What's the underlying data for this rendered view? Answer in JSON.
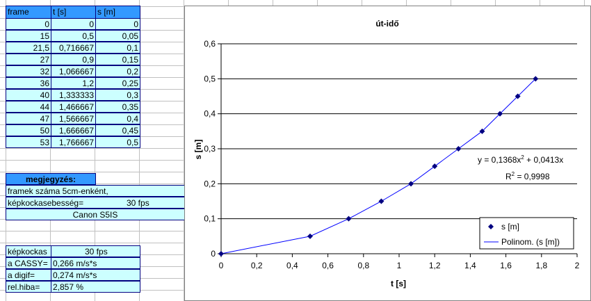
{
  "spreadsheet": {
    "headers": [
      "frame",
      "t [s]",
      "s [m]"
    ],
    "rows": [
      [
        "0",
        "0",
        "0"
      ],
      [
        "15",
        "0,5",
        "0,05"
      ],
      [
        "21,5",
        "0,716667",
        "0,1"
      ],
      [
        "27",
        "0,9",
        "0,15"
      ],
      [
        "32",
        "1,066667",
        "0,2"
      ],
      [
        "36",
        "1,2",
        "0,25"
      ],
      [
        "40",
        "1,333333",
        "0,3"
      ],
      [
        "44",
        "1,466667",
        "0,35"
      ],
      [
        "47",
        "1,566667",
        "0,4"
      ],
      [
        "50",
        "1,666667",
        "0,45"
      ],
      [
        "53",
        "1,766667",
        "0,5"
      ]
    ]
  },
  "note": {
    "header": "megjegyzés:",
    "line": "framek száma 5cm-enként,",
    "fps_label": "képkockasebesség=",
    "fps_value": "30 fps",
    "camera": "Canon S5IS"
  },
  "results": {
    "rows": [
      [
        "képkockas",
        "30 fps"
      ],
      [
        "a CASSY=",
        "0,266 m/s*s"
      ],
      [
        "a digif=",
        "0,274 m/s*s"
      ],
      [
        "rel.hiba=",
        "2,857 %"
      ]
    ]
  },
  "chart_data": {
    "type": "scatter",
    "title": "út-idő",
    "x_label": "t [s]",
    "y_label": "s [m]",
    "x": [
      0,
      0.5,
      0.716667,
      0.9,
      1.066667,
      1.2,
      1.333333,
      1.466667,
      1.566667,
      1.666667,
      1.766667
    ],
    "series": [
      {
        "name": "s [m]",
        "color": "#000080",
        "values": [
          0,
          0.05,
          0.1,
          0.15,
          0.2,
          0.25,
          0.3,
          0.35,
          0.4,
          0.45,
          0.5
        ]
      }
    ],
    "trendline": {
      "name": "Polinom. (s [m])",
      "color": "#0000ff",
      "equation": [
        "y = 0,1368x",
        "2",
        " + 0,0413x"
      ],
      "r2": [
        "R",
        "2",
        " = 0,9998"
      ]
    },
    "xlim": [
      0,
      2
    ],
    "xticks": [
      0,
      {
        "value": 0.2,
        "label": "0,2"
      },
      {
        "value": 0.4,
        "label": "0,4"
      },
      {
        "value": 0.6,
        "label": "0,6"
      },
      {
        "value": 0.8,
        "label": "0,8"
      },
      1,
      {
        "value": 1.2,
        "label": "1,2"
      },
      {
        "value": 1.4,
        "label": "1,4"
      },
      {
        "value": 1.6,
        "label": "1,6"
      },
      {
        "value": 1.8,
        "label": "1,8"
      },
      2
    ],
    "ylim": [
      0,
      0.6
    ],
    "yticks": [
      0,
      {
        "value": 0.1,
        "label": "0,1"
      },
      {
        "value": 0.2,
        "label": "0,2"
      },
      {
        "value": 0.3,
        "label": "0,3"
      },
      {
        "value": 0.4,
        "label": "0,4"
      },
      {
        "value": 0.5,
        "label": "0,5"
      },
      {
        "value": 0.6,
        "label": "0,6"
      }
    ],
    "grid": true
  }
}
